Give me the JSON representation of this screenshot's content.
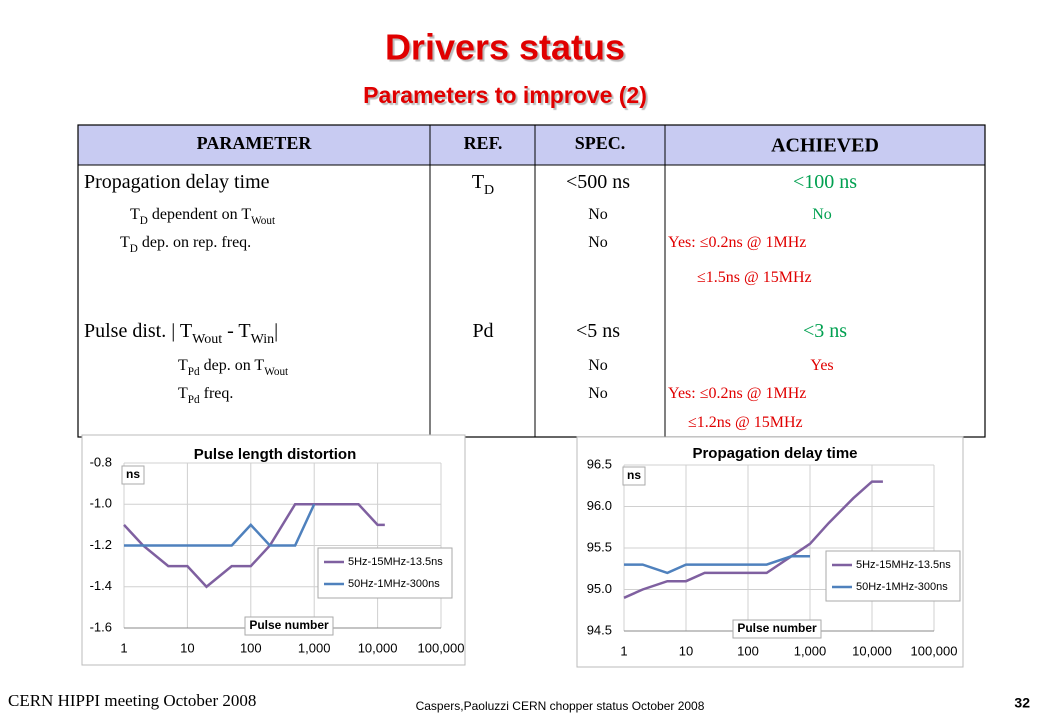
{
  "header": {
    "title": "Drivers status",
    "subtitle": "Parameters to improve (2)"
  },
  "table": {
    "columns": [
      "PARAMETER",
      "REF.",
      "SPEC.",
      "ACHIEVED"
    ],
    "rows": [
      {
        "cells": [
          [
            {
              "parts": [
                "Propagation delay time"
              ]
            },
            {
              "parts": [
                "T",
                "D",
                " dependent on T",
                "Wout"
              ]
            },
            {
              "parts": [
                "T",
                "D",
                " dep. on rep. freq."
              ]
            }
          ],
          [
            {
              "parts": [
                "T",
                "D"
              ]
            }
          ],
          [
            {
              "parts": [
                "<500 ns"
              ]
            },
            {
              "parts": [
                "No"
              ]
            },
            {
              "parts": [
                "No"
              ]
            }
          ],
          [
            {
              "parts": [
                "<100 ns"
              ],
              "color": "#00a050"
            },
            {
              "parts": [
                "No"
              ],
              "color": "#00a050"
            },
            {
              "parts": [
                "Yes:   ≤0.2ns @ 1MHz"
              ],
              "color": "#e00000"
            },
            {
              "parts": [
                "≤1.5ns @ 15MHz"
              ],
              "color": "#e00000"
            }
          ]
        ]
      },
      {
        "cells": [
          [
            {
              "parts": [
                "Pulse dist. | T",
                "Wout",
                " - T",
                "Win",
                "|"
              ]
            },
            {
              "parts": [
                "T",
                "Pd",
                " dep. on T",
                "Wout"
              ]
            },
            {
              "parts": [
                "T",
                "Pd",
                " freq."
              ]
            }
          ],
          [
            {
              "parts": [
                "Pd"
              ]
            }
          ],
          [
            {
              "parts": [
                "<5 ns"
              ]
            },
            {
              "parts": [
                "No"
              ]
            },
            {
              "parts": [
                "No"
              ]
            }
          ],
          [
            {
              "parts": [
                "<3 ns"
              ],
              "color": "#00a050"
            },
            {
              "parts": [
                "Yes"
              ],
              "color": "#e00000"
            },
            {
              "parts": [
                "Yes:  ≤0.2ns @ 1MHz"
              ],
              "color": "#e00000"
            },
            {
              "parts": [
                "≤1.2ns @ 15MHz"
              ],
              "color": "#e00000"
            }
          ]
        ]
      }
    ]
  },
  "chart_data": [
    {
      "type": "line",
      "title": "Pulse length distortion",
      "y_label": "ns",
      "x_label": "Pulse number",
      "xscale": "log",
      "grid": true,
      "legend": "right",
      "xlim": [
        1,
        100000
      ],
      "xticks": [
        1,
        10,
        100,
        {
          "value": 1000,
          "label": "1,000"
        },
        {
          "value": 10000,
          "label": "10,000"
        },
        {
          "value": 100000,
          "label": "100,000"
        }
      ],
      "ylim": [
        -1.6,
        -0.8
      ],
      "yticks": [
        -1.6,
        -1.4,
        -1.2,
        {
          "value": -1,
          "label": "-1.0"
        },
        -0.8
      ],
      "series": [
        {
          "name": "5Hz-15MHz-13.5ns",
          "color": "#7f60a0",
          "x": [
            1,
            2,
            5,
            10,
            20,
            50,
            100,
            200,
            500,
            1000,
            2000,
            5000,
            10000,
            13000
          ],
          "values": [
            -1.1,
            -1.2,
            -1.3,
            -1.3,
            -1.4,
            -1.3,
            -1.3,
            -1.2,
            -1.0,
            -1.0,
            -1.0,
            -1.0,
            -1.1,
            -1.1
          ]
        },
        {
          "name": "50Hz-1MHz-300ns",
          "color": "#4f81bd",
          "x": [
            1,
            2,
            5,
            10,
            20,
            50,
            100,
            200,
            500,
            1000
          ],
          "values": [
            -1.2,
            -1.2,
            -1.2,
            -1.2,
            -1.2,
            -1.2,
            -1.1,
            -1.2,
            -1.2,
            -1.0
          ]
        }
      ]
    },
    {
      "type": "line",
      "title": "Propagation delay time",
      "y_label": "ns",
      "x_label": "Pulse number",
      "xscale": "log",
      "grid": true,
      "legend": "right",
      "xlim": [
        1,
        100000
      ],
      "xticks": [
        1,
        10,
        100,
        {
          "value": 1000,
          "label": "1,000"
        },
        {
          "value": 10000,
          "label": "10,000"
        },
        {
          "value": 100000,
          "label": "100,000"
        }
      ],
      "ylim": [
        94.5,
        96.5
      ],
      "yticks": [
        94.5,
        {
          "value": 95,
          "label": "95.0"
        },
        95.5,
        {
          "value": 96,
          "label": "96.0"
        },
        96.5
      ],
      "series": [
        {
          "name": "5Hz-15MHz-13.5ns",
          "color": "#7f60a0",
          "x": [
            1,
            2,
            5,
            10,
            20,
            50,
            100,
            200,
            500,
            1000,
            2000,
            5000,
            10000,
            15000
          ],
          "values": [
            94.9,
            95.0,
            95.1,
            95.1,
            95.2,
            95.2,
            95.2,
            95.2,
            95.4,
            95.55,
            95.8,
            96.1,
            96.3,
            96.3
          ]
        },
        {
          "name": "50Hz-1MHz-300ns",
          "color": "#4f81bd",
          "x": [
            1,
            2,
            5,
            10,
            20,
            50,
            100,
            200,
            500,
            1000
          ],
          "values": [
            95.3,
            95.3,
            95.2,
            95.3,
            95.3,
            95.3,
            95.3,
            95.3,
            95.4,
            95.4
          ]
        }
      ]
    }
  ],
  "footer": {
    "left": "CERN HIPPI meeting October 2008",
    "center": "Caspers,Paoluzzi CERN chopper status October 2008",
    "page_number": 32
  }
}
